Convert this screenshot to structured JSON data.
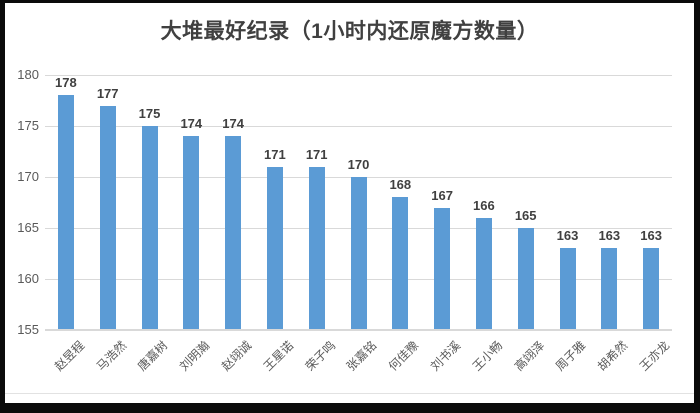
{
  "window": {
    "background": "#ffffff",
    "border_color": "#0b0b0b"
  },
  "chart_data": {
    "type": "bar",
    "title": "大堆最好纪录（1小时内还原魔方数量）",
    "categories": [
      "赵昱程",
      "马浩然",
      "唐嘉树",
      "刘明瀚",
      "赵翊诚",
      "王星诺",
      "荣子鸣",
      "张嘉铭",
      "何佳豫",
      "刘书溪",
      "王小畅",
      "高翊泽",
      "周子雅",
      "胡希然",
      "王亦龙"
    ],
    "values": [
      178,
      177,
      175,
      174,
      174,
      171,
      171,
      170,
      168,
      167,
      166,
      165,
      163,
      163,
      163
    ],
    "xlabel": "",
    "ylabel": "",
    "ylim": [
      155,
      180
    ],
    "yticks": [
      155,
      160,
      165,
      170,
      175,
      180
    ],
    "grid": true,
    "legend": false,
    "data_labels": true,
    "category_label_rotation_deg": -45
  },
  "colors": {
    "bar": "#5b9bd5",
    "gridline": "#d9d9d9",
    "axis_line": "#d9d9d9",
    "tick_label": "#595959",
    "category_label": "#595959",
    "data_label": "#404040",
    "title": "#404040"
  }
}
